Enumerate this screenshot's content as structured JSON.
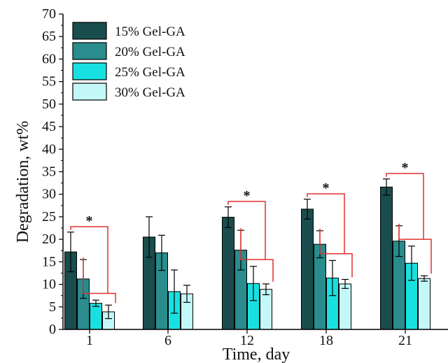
{
  "chart_data": {
    "type": "bar",
    "title": "",
    "xlabel": "Time, day",
    "ylabel": "Degradation, wt%",
    "ylim": [
      0,
      70
    ],
    "ytick_step": 5,
    "grid": false,
    "legend_position": "top-left",
    "categories": [
      "1",
      "6",
      "12",
      "18",
      "21"
    ],
    "series": [
      {
        "name": "15% Gel-GA",
        "color": "#1a4d4d",
        "values": [
          17.2,
          20.5,
          24.9,
          26.7,
          31.6
        ],
        "errors": [
          4.4,
          4.5,
          2.3,
          2.2,
          1.8
        ]
      },
      {
        "name": "20% Gel-GA",
        "color": "#2a8c8c",
        "values": [
          11.2,
          17.0,
          17.6,
          18.9,
          19.6
        ],
        "errors": [
          4.3,
          3.9,
          4.4,
          3.0,
          3.4
        ]
      },
      {
        "name": "25% Gel-GA",
        "color": "#19e0e0",
        "values": [
          5.8,
          8.4,
          10.2,
          11.4,
          14.7
        ],
        "errors": [
          0.7,
          4.8,
          3.8,
          3.9,
          3.8
        ]
      },
      {
        "name": "30% Gel-GA",
        "color": "#c4f7f7",
        "values": [
          3.9,
          7.9,
          8.9,
          10.1,
          11.3
        ],
        "errors": [
          1.5,
          1.9,
          1.2,
          1.0,
          0.6
        ]
      }
    ],
    "significance": [
      {
        "category": "1",
        "label": "*"
      },
      {
        "category": "12",
        "label": "*"
      },
      {
        "category": "18",
        "label": "*"
      },
      {
        "category": "21",
        "label": "*"
      }
    ],
    "significance_color": "#e03030"
  }
}
